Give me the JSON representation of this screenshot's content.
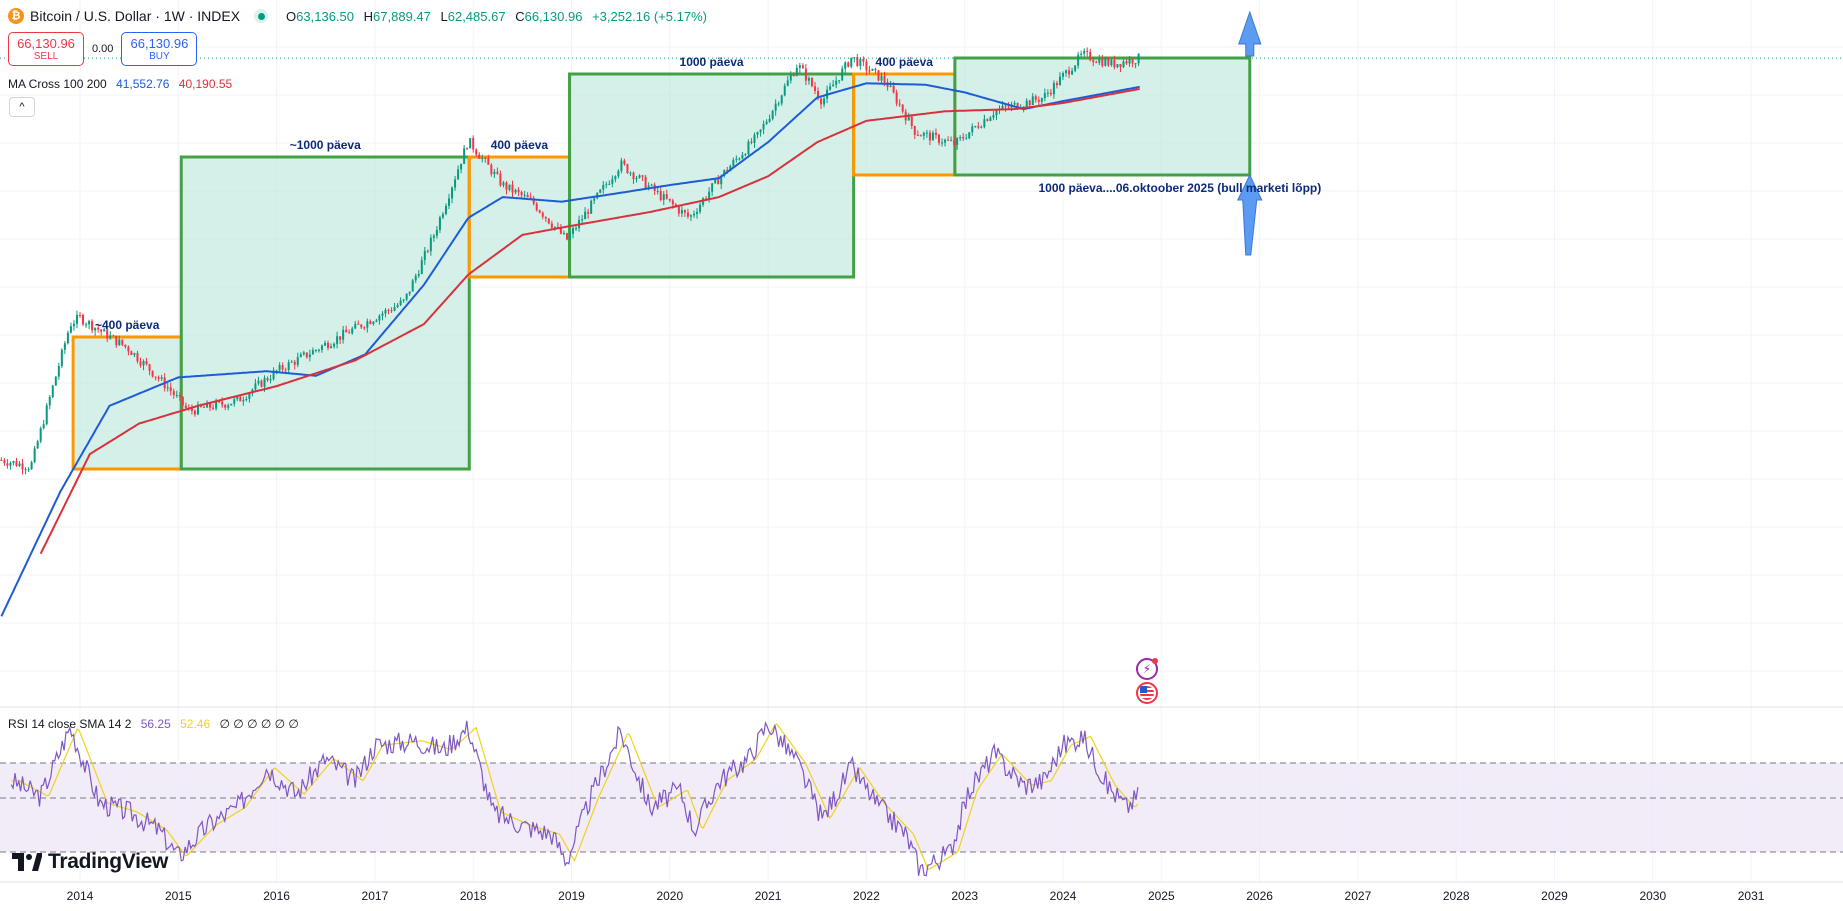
{
  "header": {
    "coin_glyph": "₿",
    "title": "Bitcoin / U.S. Dollar · 1W · INDEX",
    "ohlc": [
      {
        "k": "O",
        "v": "63,136.50"
      },
      {
        "k": "H",
        "v": "67,889.47"
      },
      {
        "k": "L",
        "v": "62,485.67"
      },
      {
        "k": "C",
        "v": "66,130.96"
      }
    ],
    "change": "+3,252.16 (+5.17%)"
  },
  "trade": {
    "sell_price": "66,130.96",
    "sell_label": "SELL",
    "spread": "0.00",
    "buy_price": "66,130.96",
    "buy_label": "BUY"
  },
  "ma_legend": {
    "name": "MA Cross 100 200",
    "ma100": "41,552.76",
    "ma200": "40,190.55"
  },
  "rsi_legend": {
    "name": "RSI 14 close SMA 14 2",
    "rsi": "56.25",
    "sma": "52.46",
    "empties": "∅ ∅ ∅ ∅ ∅ ∅"
  },
  "collapse_glyph": "^",
  "logo": {
    "text": "TradingView"
  },
  "colors": {
    "up": "#089981",
    "down": "#f23645",
    "ma100": "#1e5bd6",
    "ma200": "#d9313b",
    "box_green": "#43a047",
    "box_orange": "#ff9800",
    "box_fill": "#b2e3d7",
    "rsi_line": "#7e57c2",
    "rsi_sma": "#f0d21f",
    "rsi_band": "#ede7f6"
  },
  "chart_data": {
    "type": "candlestick",
    "x_ticks": [
      "2014",
      "2015",
      "2016",
      "2017",
      "2018",
      "2019",
      "2020",
      "2021",
      "2022",
      "2023",
      "2024",
      "2025",
      "2026",
      "2027",
      "2028",
      "2029",
      "2030",
      "2031"
    ],
    "last_price_line": 66130.96,
    "annotations": [
      {
        "label": "~400 päeva",
        "from": 2013.93,
        "to": 2015.03,
        "color": "orange"
      },
      {
        "label": "~1000 päeva",
        "from": 2015.03,
        "to": 2017.96,
        "color": "green"
      },
      {
        "label": "400 päeva",
        "from": 2017.96,
        "to": 2018.98,
        "color": "orange"
      },
      {
        "label": "1000 päeva",
        "from": 2018.98,
        "to": 2021.87,
        "color": "green"
      },
      {
        "label": "400 päeva",
        "from": 2021.87,
        "to": 2022.9,
        "color": "orange"
      },
      {
        "label": "1000 päeva....06.oktoober 2025 (bull marketi lõpp)",
        "from": 2022.9,
        "to": 2025.9,
        "color": "green"
      }
    ],
    "price_series": [
      {
        "t": 2013.2,
        "v": 100
      },
      {
        "t": 2013.5,
        "v": 90
      },
      {
        "t": 2013.9,
        "v": 900
      },
      {
        "t": 2014.0,
        "v": 1000
      },
      {
        "t": 2014.5,
        "v": 600
      },
      {
        "t": 2014.9,
        "v": 320
      },
      {
        "t": 2015.1,
        "v": 220
      },
      {
        "t": 2015.6,
        "v": 260
      },
      {
        "t": 2016.0,
        "v": 420
      },
      {
        "t": 2016.5,
        "v": 650
      },
      {
        "t": 2016.95,
        "v": 960
      },
      {
        "t": 2017.3,
        "v": 1300
      },
      {
        "t": 2017.6,
        "v": 3800
      },
      {
        "t": 2017.95,
        "v": 17500
      },
      {
        "t": 2018.3,
        "v": 8500
      },
      {
        "t": 2018.6,
        "v": 6500
      },
      {
        "t": 2018.95,
        "v": 3500
      },
      {
        "t": 2019.5,
        "v": 12000
      },
      {
        "t": 2019.9,
        "v": 7200
      },
      {
        "t": 2020.2,
        "v": 5000
      },
      {
        "t": 2020.5,
        "v": 9500
      },
      {
        "t": 2020.9,
        "v": 19000
      },
      {
        "t": 2021.3,
        "v": 60000
      },
      {
        "t": 2021.55,
        "v": 33000
      },
      {
        "t": 2021.85,
        "v": 67000
      },
      {
        "t": 2022.2,
        "v": 45000
      },
      {
        "t": 2022.5,
        "v": 20000
      },
      {
        "t": 2022.9,
        "v": 16500
      },
      {
        "t": 2023.3,
        "v": 28000
      },
      {
        "t": 2023.8,
        "v": 35000
      },
      {
        "t": 2024.2,
        "v": 70000
      },
      {
        "t": 2024.5,
        "v": 60000
      },
      {
        "t": 2024.78,
        "v": 66130.96
      }
    ],
    "ma100": [
      {
        "t": 2013.2,
        "v": 8
      },
      {
        "t": 2013.8,
        "v": 60
      },
      {
        "t": 2014.3,
        "v": 240
      },
      {
        "t": 2015.0,
        "v": 380
      },
      {
        "t": 2015.9,
        "v": 420
      },
      {
        "t": 2016.4,
        "v": 390
      },
      {
        "t": 2016.9,
        "v": 550
      },
      {
        "t": 2017.5,
        "v": 1700
      },
      {
        "t": 2017.95,
        "v": 5000
      },
      {
        "t": 2018.3,
        "v": 7000
      },
      {
        "t": 2018.9,
        "v": 6500
      },
      {
        "t": 2019.5,
        "v": 7500
      },
      {
        "t": 2020.0,
        "v": 8500
      },
      {
        "t": 2020.5,
        "v": 9500
      },
      {
        "t": 2021.0,
        "v": 17000
      },
      {
        "t": 2021.5,
        "v": 35000
      },
      {
        "t": 2022.0,
        "v": 44000
      },
      {
        "t": 2022.6,
        "v": 43000
      },
      {
        "t": 2023.0,
        "v": 38000
      },
      {
        "t": 2023.6,
        "v": 29000
      },
      {
        "t": 2024.0,
        "v": 33000
      },
      {
        "t": 2024.78,
        "v": 41552.76
      }
    ],
    "ma200": [
      {
        "t": 2013.6,
        "v": 22
      },
      {
        "t": 2014.1,
        "v": 110
      },
      {
        "t": 2014.6,
        "v": 180
      },
      {
        "t": 2015.2,
        "v": 240
      },
      {
        "t": 2016.0,
        "v": 330
      },
      {
        "t": 2016.8,
        "v": 500
      },
      {
        "t": 2017.5,
        "v": 900
      },
      {
        "t": 2017.95,
        "v": 2000
      },
      {
        "t": 2018.5,
        "v": 3800
      },
      {
        "t": 2019.0,
        "v": 4400
      },
      {
        "t": 2019.8,
        "v": 5500
      },
      {
        "t": 2020.5,
        "v": 7000
      },
      {
        "t": 2021.0,
        "v": 9800
      },
      {
        "t": 2021.5,
        "v": 17000
      },
      {
        "t": 2022.0,
        "v": 24000
      },
      {
        "t": 2022.8,
        "v": 28000
      },
      {
        "t": 2023.5,
        "v": 29000
      },
      {
        "t": 2024.0,
        "v": 32000
      },
      {
        "t": 2024.78,
        "v": 40190.55
      }
    ],
    "rsi": {
      "bands": [
        70,
        50,
        30
      ],
      "series": [
        {
          "t": 2013.3,
          "v": 62
        },
        {
          "t": 2013.6,
          "v": 55
        },
        {
          "t": 2013.9,
          "v": 86
        },
        {
          "t": 2014.2,
          "v": 52
        },
        {
          "t": 2014.5,
          "v": 48
        },
        {
          "t": 2014.8,
          "v": 40
        },
        {
          "t": 2015.0,
          "v": 28
        },
        {
          "t": 2015.3,
          "v": 42
        },
        {
          "t": 2015.6,
          "v": 50
        },
        {
          "t": 2015.9,
          "v": 68
        },
        {
          "t": 2016.2,
          "v": 56
        },
        {
          "t": 2016.5,
          "v": 72
        },
        {
          "t": 2016.8,
          "v": 62
        },
        {
          "t": 2017.0,
          "v": 78
        },
        {
          "t": 2017.4,
          "v": 80
        },
        {
          "t": 2017.7,
          "v": 76
        },
        {
          "t": 2017.95,
          "v": 86
        },
        {
          "t": 2018.2,
          "v": 48
        },
        {
          "t": 2018.5,
          "v": 42
        },
        {
          "t": 2018.8,
          "v": 38
        },
        {
          "t": 2018.95,
          "v": 26
        },
        {
          "t": 2019.2,
          "v": 55
        },
        {
          "t": 2019.5,
          "v": 84
        },
        {
          "t": 2019.8,
          "v": 50
        },
        {
          "t": 2020.1,
          "v": 58
        },
        {
          "t": 2020.25,
          "v": 40
        },
        {
          "t": 2020.5,
          "v": 62
        },
        {
          "t": 2020.8,
          "v": 72
        },
        {
          "t": 2021.0,
          "v": 88
        },
        {
          "t": 2021.3,
          "v": 70
        },
        {
          "t": 2021.55,
          "v": 45
        },
        {
          "t": 2021.85,
          "v": 68
        },
        {
          "t": 2022.1,
          "v": 52
        },
        {
          "t": 2022.4,
          "v": 38
        },
        {
          "t": 2022.55,
          "v": 22
        },
        {
          "t": 2022.85,
          "v": 30
        },
        {
          "t": 2023.05,
          "v": 58
        },
        {
          "t": 2023.3,
          "v": 74
        },
        {
          "t": 2023.6,
          "v": 60
        },
        {
          "t": 2023.8,
          "v": 62
        },
        {
          "t": 2024.0,
          "v": 78
        },
        {
          "t": 2024.2,
          "v": 82
        },
        {
          "t": 2024.45,
          "v": 60
        },
        {
          "t": 2024.65,
          "v": 50
        },
        {
          "t": 2024.78,
          "v": 56.25
        }
      ]
    }
  }
}
